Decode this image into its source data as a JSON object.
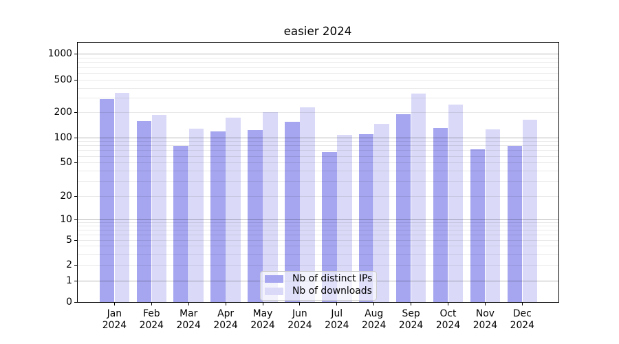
{
  "chart_data": {
    "type": "bar",
    "title": "easier 2024",
    "categories": [
      "Jan",
      "Feb",
      "Mar",
      "Apr",
      "May",
      "Jun",
      "Jul",
      "Aug",
      "Sep",
      "Oct",
      "Nov",
      "Dec"
    ],
    "category_year": "2024",
    "series": [
      {
        "name": "Nb of distinct IPs",
        "color": "#a5a5f0",
        "values": [
          294,
          157,
          79,
          119,
          124,
          155,
          67,
          110,
          189,
          131,
          73,
          80
        ]
      },
      {
        "name": "Nb of downloads",
        "color": "#dadaf8",
        "values": [
          351,
          187,
          129,
          172,
          201,
          231,
          108,
          146,
          340,
          251,
          126,
          163
        ]
      }
    ],
    "xlabel": "",
    "ylabel": "",
    "yscale": "symlog",
    "ylim": [
      0,
      1400
    ],
    "y_tick_values": [
      0,
      1,
      2,
      5,
      10,
      20,
      50,
      100,
      200,
      500,
      1000
    ],
    "y_tick_labels": [
      "0",
      "1",
      "2",
      "5",
      "10",
      "20",
      "50",
      "100",
      "200",
      "500",
      "1000"
    ],
    "grid": "both",
    "legend_position": "lower center"
  },
  "colors": {
    "grid_major": "#b5b5b5",
    "grid_minor": "#e9e9e9",
    "axis": "#000000",
    "background": "#ffffff"
  }
}
